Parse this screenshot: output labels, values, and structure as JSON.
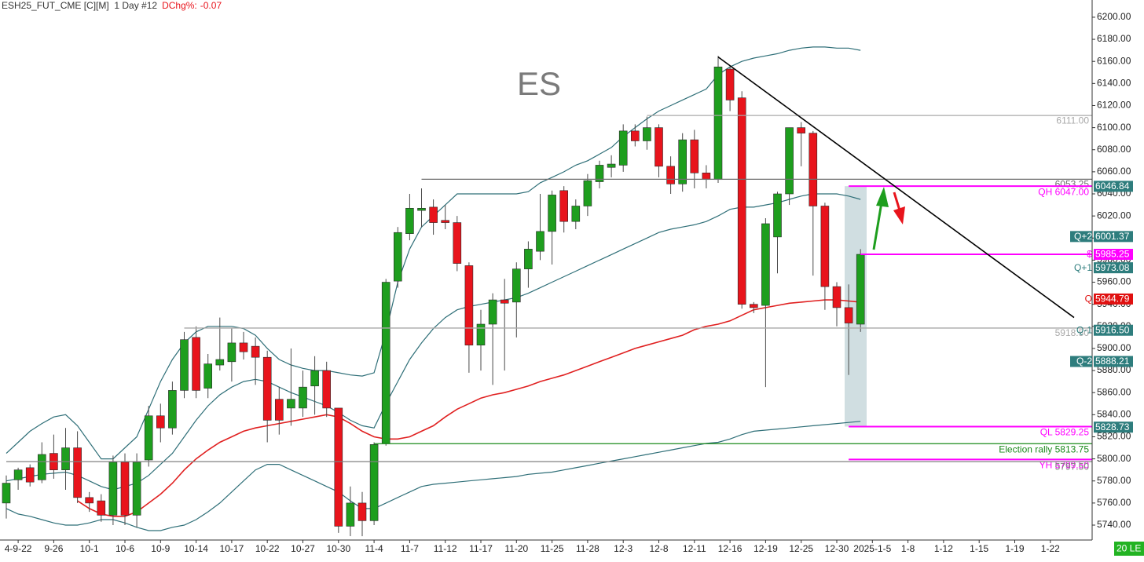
{
  "chart_data": {
    "type": "candlestick",
    "title": "ESH25_FUT_CME [C][M]  1 Day #12",
    "change_label": "DChg%:",
    "change": -0.07,
    "watermark": "ES",
    "corner_badge": "20 LE",
    "up_color": "#1e9e1e",
    "down_color": "#e8141c",
    "grid": false,
    "ylim": [
      5726.5,
      6215.6
    ],
    "yticks": [
      {
        "value": 5740,
        "label": "5740.00"
      },
      {
        "value": 5760,
        "label": "5760.00"
      },
      {
        "value": 5780,
        "label": "5780.00"
      },
      {
        "value": 5800,
        "label": "5800.00"
      },
      {
        "value": 5820,
        "label": "5820.00"
      },
      {
        "value": 5840,
        "label": "5840.00"
      },
      {
        "value": 5860,
        "label": "5860.00"
      },
      {
        "value": 5880,
        "label": "5880.00"
      },
      {
        "value": 5900,
        "label": "5900.00"
      },
      {
        "value": 5920,
        "label": "5920.00"
      },
      {
        "value": 5940,
        "label": "5940.00"
      },
      {
        "value": 5960,
        "label": "5960.00"
      },
      {
        "value": 5980,
        "label": "5980.00"
      },
      {
        "value": 6000,
        "label": "6000.00"
      },
      {
        "value": 6020,
        "label": "6020.00"
      },
      {
        "value": 6040,
        "label": "6040.00"
      },
      {
        "value": 6060,
        "label": "6060.00"
      },
      {
        "value": 6080,
        "label": "6080.00"
      },
      {
        "value": 6100,
        "label": "6100.00"
      },
      {
        "value": 6120,
        "label": "6120.00"
      },
      {
        "value": 6140,
        "label": "6140.00"
      },
      {
        "value": 6160,
        "label": "6160.00"
      },
      {
        "value": 6180,
        "label": "6180.00"
      },
      {
        "value": 6200,
        "label": "6200.00"
      }
    ],
    "categories": [
      null,
      "4-9-22",
      null,
      null,
      "9-26",
      null,
      null,
      "10-1",
      null,
      null,
      "10-6",
      null,
      null,
      "10-9",
      null,
      null,
      "10-14",
      null,
      null,
      "10-17",
      null,
      null,
      "10-22",
      null,
      null,
      "10-27",
      null,
      null,
      "10-30",
      null,
      null,
      "11-4",
      null,
      null,
      "11-7",
      null,
      null,
      "11-12",
      null,
      null,
      "11-17",
      null,
      null,
      "11-20",
      null,
      null,
      "11-25",
      null,
      null,
      "11-28",
      null,
      null,
      "12-3",
      null,
      null,
      "12-8",
      null,
      null,
      "12-11",
      null,
      null,
      "12-16",
      null,
      null,
      "12-19",
      null,
      null,
      "12-25",
      null,
      null,
      "12-30",
      null,
      null,
      "2025-1-5",
      null,
      null,
      "1-8",
      null,
      null,
      "1-12",
      null,
      null,
      "1-15",
      null,
      null,
      "1-19",
      null,
      null,
      "1-22"
    ],
    "open": [
      5760,
      5781,
      5792,
      5781,
      5805,
      5790,
      5810,
      5765,
      5762,
      5749,
      5797,
      5749,
      5799,
      5839,
      5828,
      5862,
      5910,
      5864,
      5885,
      5888,
      5905,
      5902,
      5892,
      5854,
      5846,
      5846,
      5866,
      5880,
      5846,
      5739,
      5760,
      5744,
      5814,
      5961,
      6004,
      6025,
      6028,
      6016,
      6014,
      5975,
      5903,
      5922,
      5944,
      5942,
      5972,
      5988,
      6006,
      6043,
      6015,
      6029,
      6051,
      6064,
      6066,
      6097,
      6088,
      6100,
      6065,
      6049,
      6089,
      6059,
      6053,
      6153,
      6127,
      5940,
      5939,
      6001,
      6040,
      6100,
      6095,
      6029,
      5956,
      5937,
      5922,
      null,
      null,
      null,
      null,
      null,
      null,
      null,
      null,
      null,
      null,
      null,
      null,
      null,
      null,
      null,
      null
    ],
    "high": [
      5785,
      5792,
      5795,
      5815,
      5822,
      5828,
      5825,
      5770,
      5768,
      5803,
      5805,
      5805,
      5848,
      5850,
      5870,
      5915,
      5920,
      5895,
      5928,
      5918,
      5915,
      5910,
      5898,
      5865,
      5900,
      5880,
      5893,
      5888,
      5846,
      5775,
      5770,
      5815,
      5963,
      6010,
      6040,
      6045,
      6035,
      6030,
      6020,
      5978,
      5935,
      5950,
      5963,
      5978,
      5997,
      6040,
      6043,
      6047,
      6035,
      6058,
      6070,
      6075,
      6103,
      6103,
      6110,
      6103,
      6074,
      6095,
      6098,
      6066,
      6165,
      6155,
      6133,
      5942,
      6018,
      6042,
      6100,
      6105,
      6097,
      6032,
      5960,
      5958,
      5990,
      null,
      null,
      null,
      null,
      null,
      null,
      null,
      null,
      null,
      null,
      null,
      null,
      null,
      null,
      null,
      null
    ],
    "low": [
      5746,
      5772,
      5775,
      5778,
      5782,
      5772,
      5760,
      5752,
      5743,
      5740,
      5740,
      5738,
      5793,
      5815,
      5822,
      5855,
      5855,
      5855,
      5880,
      5870,
      5890,
      5867,
      5815,
      5822,
      5830,
      5838,
      5840,
      5838,
      5733,
      5730,
      5730,
      5740,
      5812,
      5955,
      5998,
      6010,
      6003,
      6008,
      5970,
      5878,
      5880,
      5867,
      5880,
      5910,
      5955,
      5980,
      5976,
      6005,
      6008,
      6020,
      6045,
      6055,
      6060,
      6083,
      6080,
      6055,
      6040,
      6042,
      6045,
      6045,
      6050,
      6115,
      5936,
      5932,
      5865,
      5968,
      6030,
      6065,
      5966,
      5935,
      5920,
      5876,
      5915,
      null,
      null,
      null,
      null,
      null,
      null,
      null,
      null,
      null,
      null,
      null,
      null,
      null,
      null,
      null,
      null
    ],
    "close": [
      5778,
      5790,
      5779,
      5804,
      5790,
      5810,
      5765,
      5760,
      5749,
      5797,
      5749,
      5797,
      5839,
      5828,
      5862,
      5908,
      5862,
      5886,
      5890,
      5905,
      5897,
      5892,
      5835,
      5835,
      5854,
      5865,
      5880,
      5846,
      5739,
      5760,
      5744,
      5813,
      5960,
      6005,
      6027,
      6027,
      6014,
      6014,
      5977,
      5903,
      5922,
      5944,
      5941,
      5972,
      5990,
      6006,
      6039,
      6015,
      6029,
      6052,
      6066,
      6067,
      6097,
      6088,
      6100,
      6065,
      6049,
      6089,
      6059,
      6053,
      6155,
      6125,
      5940,
      5937,
      6013,
      6040,
      6100,
      6095,
      6029,
      5956,
      5937,
      5923,
      5985.25,
      null,
      null,
      null,
      null,
      null,
      null,
      null,
      null,
      null,
      null,
      null,
      null,
      null,
      null,
      null,
      null
    ],
    "bands": {
      "color": "#2f6f78",
      "upper": [
        5805,
        5815,
        5825,
        5832,
        5838,
        5840,
        5830,
        5815,
        5800,
        5800,
        5810,
        5820,
        5845,
        5870,
        5890,
        5905,
        5915,
        5920,
        5920,
        5920,
        5918,
        5912,
        5900,
        5890,
        5885,
        5882,
        5880,
        5880,
        5878,
        5876,
        5875,
        5878,
        5915,
        5960,
        5990,
        6010,
        6020,
        6030,
        6040,
        6040,
        6040,
        6040,
        6040,
        6040,
        6042,
        6050,
        6055,
        6060,
        6066,
        6070,
        6076,
        6082,
        6092,
        6100,
        6108,
        6115,
        6120,
        6125,
        6130,
        6135,
        6148,
        6155,
        6160,
        6163,
        6165,
        6167,
        6170,
        6172,
        6173,
        6173,
        6172,
        6172,
        6170,
        null,
        null,
        null,
        null,
        null,
        null,
        null,
        null,
        null,
        null,
        null,
        null,
        null,
        null,
        null,
        null
      ],
      "middle": [
        5780,
        5782,
        5784,
        5786,
        5787,
        5788,
        5785,
        5780,
        5775,
        5772,
        5775,
        5778,
        5785,
        5795,
        5805,
        5820,
        5835,
        5848,
        5858,
        5865,
        5870,
        5872,
        5870,
        5865,
        5860,
        5856,
        5852,
        5848,
        5842,
        5835,
        5830,
        5828,
        5850,
        5870,
        5890,
        5905,
        5918,
        5928,
        5935,
        5938,
        5940,
        5942,
        5944,
        5946,
        5950,
        5955,
        5960,
        5965,
        5970,
        5975,
        5980,
        5985,
        5990,
        5995,
        6000,
        6005,
        6008,
        6010,
        6012,
        6015,
        6020,
        6026,
        6028,
        6028,
        6030,
        6032,
        6035,
        6038,
        6040,
        6040,
        6040,
        6038,
        6035,
        null,
        null,
        null,
        null,
        null,
        null,
        null,
        null,
        null,
        null,
        null,
        null,
        null,
        null,
        null,
        null
      ],
      "lower": [
        5755,
        5750,
        5748,
        5745,
        5742,
        5740,
        5740,
        5742,
        5745,
        5745,
        5742,
        5738,
        5735,
        5735,
        5738,
        5740,
        5745,
        5752,
        5760,
        5770,
        5780,
        5790,
        5795,
        5795,
        5790,
        5785,
        5780,
        5775,
        5770,
        5762,
        5755,
        5755,
        5760,
        5765,
        5770,
        5775,
        5777,
        5778,
        5779,
        5780,
        5781,
        5782,
        5783,
        5784,
        5786,
        5787,
        5788,
        5790,
        5792,
        5794,
        5796,
        5798,
        5800,
        5802,
        5804,
        5806,
        5808,
        5810,
        5812,
        5814,
        5815,
        5818,
        5822,
        5825,
        5826,
        5827,
        5828,
        5829,
        5830,
        5831,
        5832,
        5833,
        5834,
        null,
        null,
        null,
        null,
        null,
        null,
        null,
        null,
        null,
        null,
        null,
        null,
        null,
        null,
        null,
        null
      ]
    },
    "moving_average": {
      "color": "#e02020",
      "values": [
        null,
        null,
        null,
        null,
        null,
        null,
        5762,
        5755,
        5750,
        5748,
        5748,
        5752,
        5760,
        5768,
        5778,
        5790,
        5800,
        5808,
        5815,
        5820,
        5825,
        5828,
        5830,
        5832,
        5834,
        5836,
        5838,
        5840,
        5838,
        5832,
        5825,
        5820,
        5818,
        5818,
        5820,
        5825,
        5830,
        5838,
        5845,
        5850,
        5855,
        5858,
        5860,
        5863,
        5866,
        5870,
        5873,
        5876,
        5880,
        5884,
        5888,
        5892,
        5896,
        5900,
        5903,
        5906,
        5909,
        5912,
        5917,
        5920,
        5922,
        5925,
        5930,
        5935,
        5937,
        5939,
        5941,
        5942,
        5943,
        5944,
        5944,
        5943,
        5942,
        null,
        null,
        null,
        null,
        null,
        null,
        null,
        null,
        null,
        null,
        null,
        null,
        null,
        null,
        null,
        null
      ]
    },
    "trendline": {
      "x": [
        60,
        90
      ],
      "y": [
        6164,
        5928
      ],
      "color": "#000000"
    },
    "levels": [
      {
        "price": 6111,
        "price_label": "6111.00",
        "color": "#a8a8a8",
        "from": 54
      },
      {
        "price": 6053.25,
        "price_label": "6053.25",
        "color": "#6e6e6e",
        "from": 35
      },
      {
        "price": 6047,
        "text": "QH 6047.00",
        "color": "#ff00ff",
        "from": 71
      },
      {
        "price": 5985.25,
        "color": "#ff00ff",
        "from": 72
      },
      {
        "price": 5918.5,
        "price_label": "5918.50",
        "color": "#a8a8a8",
        "from": 15
      },
      {
        "price": 5829.25,
        "text": "QL 5829.25",
        "color": "#ff00ff",
        "from": 71
      },
      {
        "price": 5813.75,
        "text": "Election rally 5813.75",
        "color": "#1a8a1a",
        "from": 31
      },
      {
        "price": 5799.5,
        "text": "YH 5799.50",
        "color": "#ff00ff",
        "from": 71
      },
      {
        "price": 5797.5,
        "price_label": "5797.50",
        "color": "#808080",
        "from": 0
      }
    ],
    "markers": [
      {
        "value": 6046.84,
        "color": "#2e7d7d"
      },
      {
        "tag": "Q+2",
        "tag_box": true,
        "value": 6001.37,
        "color": "#2e7d7d"
      },
      {
        "tag": "$",
        "value": 5985.25,
        "color": "#ff00ff"
      },
      {
        "tag": "Q+1",
        "value": 5973.08,
        "color": "#2e7d7d"
      },
      {
        "tag": "Q",
        "value": 5944.79,
        "color": "#e01010"
      },
      {
        "tag": "Q-1",
        "value": 5916.5,
        "label": "5916.50",
        "color": "#2e7d7d"
      },
      {
        "tag": "Q-2",
        "tag_box": true,
        "value": 5888.21,
        "color": "#2e7d7d"
      },
      {
        "value": 5828.73,
        "color": "#2e7d7d"
      }
    ]
  }
}
